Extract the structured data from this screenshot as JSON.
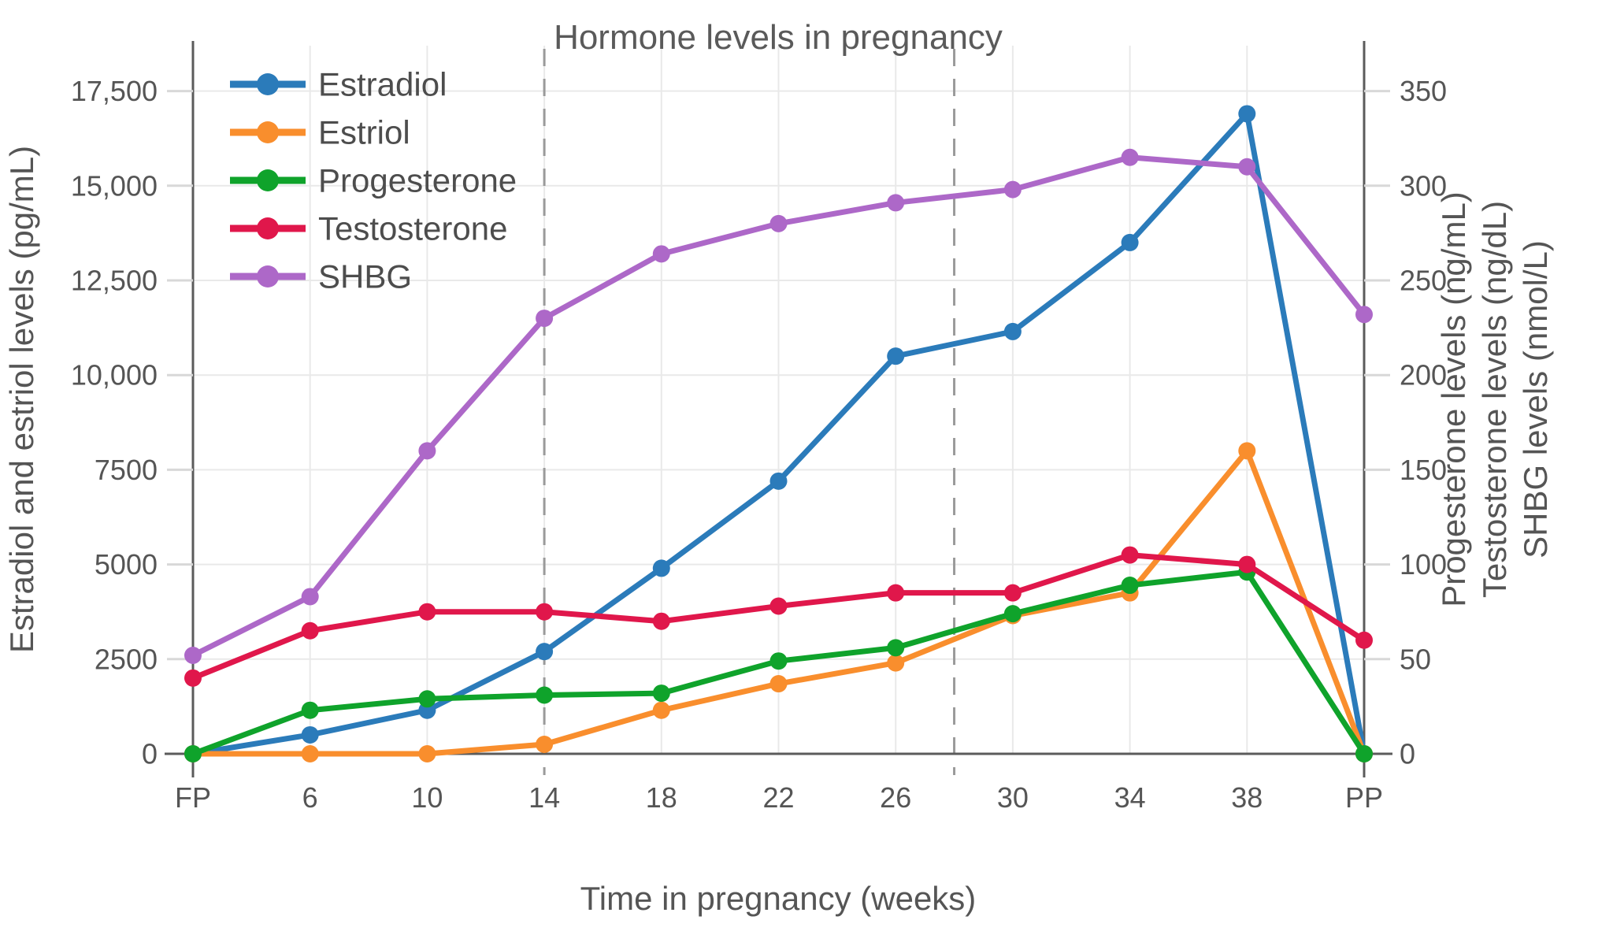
{
  "title": "Hormone levels in pregnancy",
  "x_axis": {
    "title": "Time in pregnancy (weeks)",
    "categories": [
      "FP",
      "6",
      "10",
      "14",
      "18",
      "22",
      "26",
      "30",
      "34",
      "38",
      "PP"
    ]
  },
  "left_axis": {
    "title": "Estradiol and estriol levels (pg/mL)",
    "tick_labels": [
      "0",
      "2500",
      "5000",
      "7500",
      "10,000",
      "12,500",
      "15,000",
      "17,500"
    ],
    "tick_values": [
      0,
      2500,
      5000,
      7500,
      10000,
      12500,
      15000,
      17500
    ]
  },
  "right_axis": {
    "titles": [
      "Progesterone levels (ng/mL)",
      "Testosterone levels (ng/dL)",
      "SHBG levels (nmol/L)"
    ],
    "tick_labels": [
      "0",
      "50",
      "100",
      "150",
      "200",
      "250",
      "300",
      "350"
    ],
    "tick_values": [
      0,
      50,
      100,
      150,
      200,
      250,
      300,
      350
    ]
  },
  "colors": {
    "estradiol": "#2b7bba",
    "estriol": "#f98e2d",
    "progesterone": "#0fa32b",
    "testosterone": "#e0174b",
    "shbg": "#ad68c8",
    "gridline": "#e9e9e9",
    "tick_line": "#d8d8d8",
    "axis_line": "#5b5b5b",
    "dashed_line": "#9a9a9a",
    "text": "#555555"
  },
  "chart_data": {
    "type": "line",
    "categories": [
      "FP",
      "6",
      "10",
      "14",
      "18",
      "22",
      "26",
      "30",
      "34",
      "38",
      "PP"
    ],
    "series": [
      {
        "name": "Estradiol",
        "unit": "pg/mL",
        "axis": "left",
        "color": "#2b7bba",
        "values": [
          0,
          500,
          1150,
          2700,
          4900,
          7200,
          10500,
          11150,
          13500,
          16900,
          0
        ]
      },
      {
        "name": "Estriol",
        "unit": "pg/mL",
        "axis": "left",
        "color": "#f98e2d",
        "values": [
          0,
          0,
          0,
          250,
          1150,
          1850,
          2400,
          3650,
          4250,
          8000,
          0
        ]
      },
      {
        "name": "Progesterone",
        "unit": "ng/mL",
        "axis": "right",
        "color": "#0fa32b",
        "values": [
          0,
          23,
          29,
          31,
          32,
          49,
          56,
          74,
          89,
          96,
          0
        ]
      },
      {
        "name": "Testosterone",
        "unit": "ng/dL",
        "axis": "right",
        "color": "#e0174b",
        "values": [
          40,
          65,
          75,
          75,
          70,
          78,
          85,
          85,
          105,
          100,
          60
        ]
      },
      {
        "name": "SHBG",
        "unit": "nmol/L",
        "axis": "right",
        "color": "#ad68c8",
        "values": [
          52,
          83,
          160,
          230,
          264,
          280,
          291,
          298,
          315,
          310,
          232
        ]
      }
    ],
    "title": "Hormone levels in pregnancy",
    "xlabel": "Time in pregnancy (weeks)",
    "ylabel_left": "Estradiol and estriol levels (pg/mL)",
    "ylabel_right": "Progesterone levels (ng/mL); Testosterone levels (ng/dL); SHBG levels (nmol/L)",
    "left_ylim": [
      0,
      18700
    ],
    "right_ylim": [
      0,
      374
    ],
    "right_to_left_scale": 50,
    "grid": true,
    "legend_position": "top-left",
    "vertical_dashed_lines": [
      {
        "label": "trimester-boundary-week-14",
        "tick_index": 3
      },
      {
        "label": "trimester-boundary-week-28",
        "tick_index": 6.5
      }
    ]
  }
}
